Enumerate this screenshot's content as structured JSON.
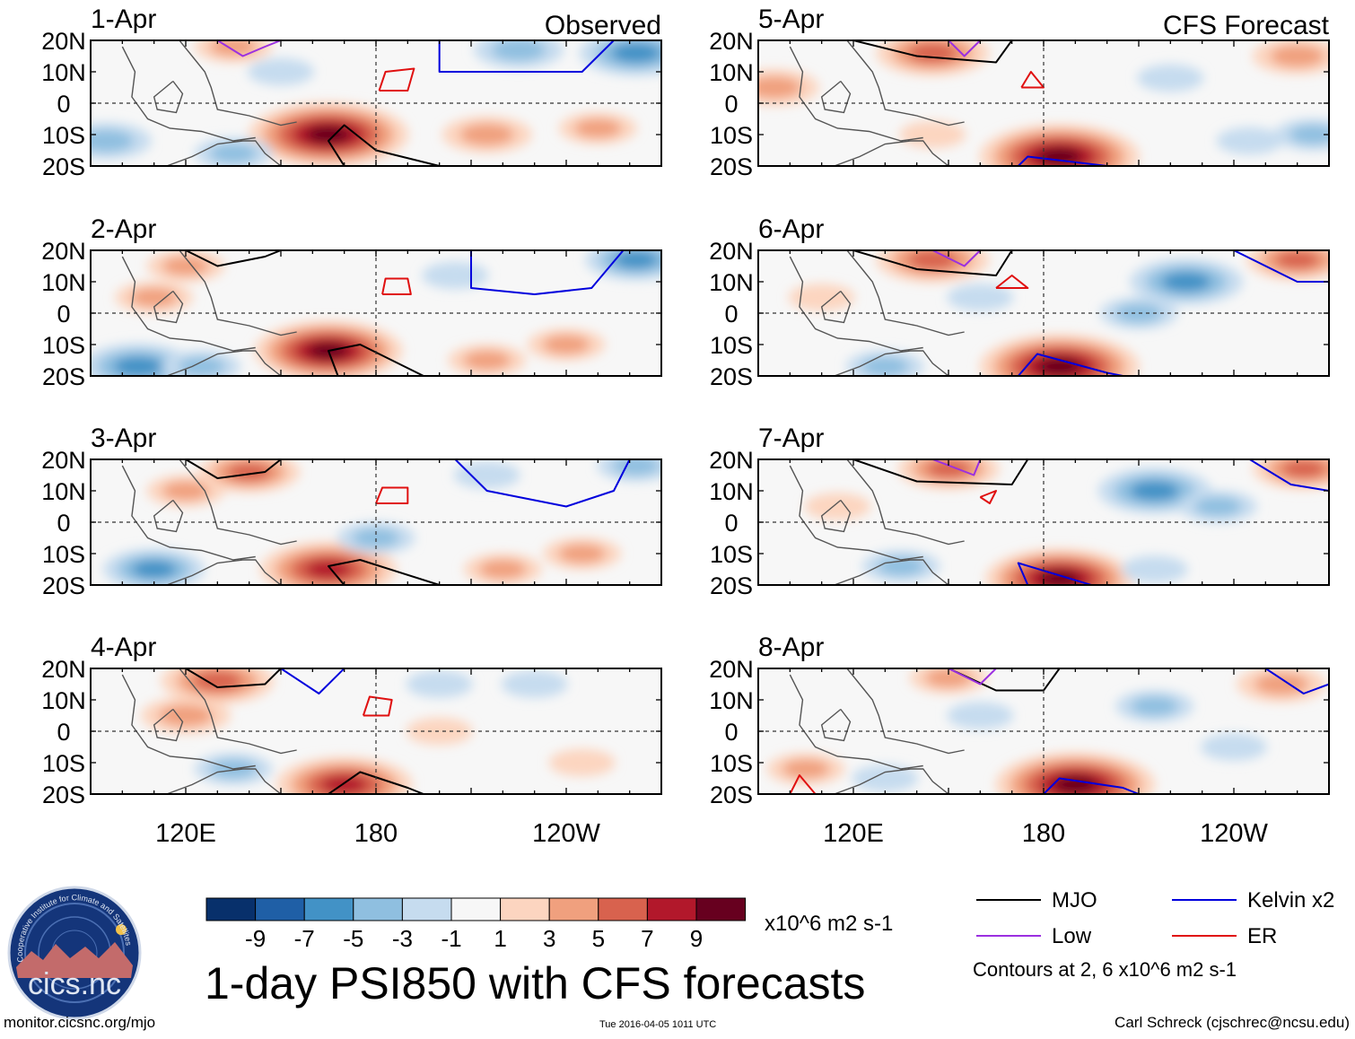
{
  "chart_data": {
    "type": "heatmap",
    "title": "1-day PSI850 with CFS forecasts",
    "variable": "PSI850 anomaly",
    "units": "x10^6 m2 s-1",
    "x_ticks": [
      "120E",
      "180",
      "120W"
    ],
    "y_ticks": [
      "20N",
      "10N",
      "0",
      "10S",
      "20S"
    ],
    "x_range_deg_east": [
      90,
      270
    ],
    "y_range_deg": [
      -20,
      20
    ],
    "left_column_header": "Observed",
    "right_column_header": "CFS Forecast",
    "panels": [
      {
        "date": "1-Apr",
        "column": "observed",
        "anomalies": [
          {
            "lon": 165,
            "lat": -10,
            "value": 10
          },
          {
            "lon": 135,
            "lat": 18,
            "value": 3
          },
          {
            "lon": 215,
            "lat": -10,
            "value": 4
          },
          {
            "lon": 250,
            "lat": -8,
            "value": 3
          },
          {
            "lon": 95,
            "lat": -12,
            "value": -4
          },
          {
            "lon": 225,
            "lat": 17,
            "value": -4
          },
          {
            "lon": 262,
            "lat": 16,
            "value": -6
          },
          {
            "lon": 150,
            "lat": 10,
            "value": -2
          },
          {
            "lon": 135,
            "lat": -16,
            "value": -3
          }
        ],
        "mjo": [
          [
            170,
            -20
          ],
          [
            165,
            -12
          ],
          [
            170,
            -7
          ],
          [
            180,
            -15
          ],
          [
            200,
            -20
          ]
        ],
        "kelvin": [
          [
            200,
            20
          ],
          [
            200,
            10
          ],
          [
            245,
            10
          ],
          [
            255,
            20
          ]
        ],
        "er": [
          [
            181,
            4
          ],
          [
            183,
            10
          ],
          [
            192,
            11
          ],
          [
            190,
            4
          ],
          [
            181,
            4
          ]
        ],
        "low": [
          [
            130,
            20
          ],
          [
            138,
            15
          ],
          [
            145,
            18
          ],
          [
            150,
            20
          ]
        ]
      },
      {
        "date": "2-Apr",
        "column": "observed",
        "anomalies": [
          {
            "lon": 165,
            "lat": -12,
            "value": 9
          },
          {
            "lon": 120,
            "lat": 15,
            "value": 3
          },
          {
            "lon": 110,
            "lat": 5,
            "value": 3
          },
          {
            "lon": 240,
            "lat": -10,
            "value": 3
          },
          {
            "lon": 215,
            "lat": -15,
            "value": 3
          },
          {
            "lon": 105,
            "lat": -17,
            "value": -6
          },
          {
            "lon": 125,
            "lat": -17,
            "value": -3
          },
          {
            "lon": 205,
            "lat": 12,
            "value": -2
          },
          {
            "lon": 262,
            "lat": 17,
            "value": -5
          }
        ],
        "mjo": [
          [
            120,
            20
          ],
          [
            130,
            15
          ],
          [
            145,
            18
          ],
          [
            150,
            20
          ]
        ],
        "mjo2": [
          [
            168,
            -20
          ],
          [
            165,
            -12
          ],
          [
            175,
            -10
          ],
          [
            195,
            -20
          ]
        ],
        "kelvin": [
          [
            210,
            20
          ],
          [
            210,
            8
          ],
          [
            230,
            6
          ],
          [
            248,
            8
          ],
          [
            258,
            20
          ]
        ],
        "er": [
          [
            182,
            6
          ],
          [
            183,
            11
          ],
          [
            190,
            11
          ],
          [
            191,
            6
          ],
          [
            182,
            6
          ]
        ]
      },
      {
        "date": "3-Apr",
        "column": "observed",
        "anomalies": [
          {
            "lon": 165,
            "lat": -15,
            "value": 8
          },
          {
            "lon": 140,
            "lat": 16,
            "value": 5
          },
          {
            "lon": 120,
            "lat": 10,
            "value": 3
          },
          {
            "lon": 245,
            "lat": -10,
            "value": 3
          },
          {
            "lon": 220,
            "lat": -15,
            "value": 3
          },
          {
            "lon": 110,
            "lat": -15,
            "value": -5
          },
          {
            "lon": 180,
            "lat": -5,
            "value": -3
          },
          {
            "lon": 215,
            "lat": 15,
            "value": -2
          },
          {
            "lon": 262,
            "lat": 18,
            "value": -3
          }
        ],
        "mjo": [
          [
            120,
            20
          ],
          [
            130,
            14
          ],
          [
            145,
            16
          ],
          [
            150,
            20
          ]
        ],
        "mjo2": [
          [
            170,
            -20
          ],
          [
            165,
            -14
          ],
          [
            175,
            -12
          ],
          [
            200,
            -20
          ]
        ],
        "kelvin": [
          [
            205,
            20
          ],
          [
            215,
            10
          ],
          [
            240,
            5
          ],
          [
            255,
            10
          ],
          [
            260,
            20
          ]
        ],
        "er": [
          [
            180,
            6
          ],
          [
            182,
            11
          ],
          [
            190,
            11
          ],
          [
            190,
            6
          ],
          [
            180,
            6
          ]
        ]
      },
      {
        "date": "4-Apr",
        "column": "observed",
        "anomalies": [
          {
            "lon": 170,
            "lat": -17,
            "value": 8
          },
          {
            "lon": 130,
            "lat": 16,
            "value": 6
          },
          {
            "lon": 120,
            "lat": 5,
            "value": 4
          },
          {
            "lon": 200,
            "lat": 0,
            "value": 2
          },
          {
            "lon": 245,
            "lat": -10,
            "value": 2
          },
          {
            "lon": 135,
            "lat": -12,
            "value": -3
          },
          {
            "lon": 200,
            "lat": 15,
            "value": -2
          },
          {
            "lon": 230,
            "lat": 15,
            "value": -2
          }
        ],
        "mjo": [
          [
            120,
            20
          ],
          [
            130,
            14
          ],
          [
            145,
            15
          ],
          [
            150,
            20
          ]
        ],
        "mjo2": [
          [
            165,
            -20
          ],
          [
            175,
            -13
          ],
          [
            190,
            -18
          ],
          [
            195,
            -20
          ]
        ],
        "kelvin": [
          [
            150,
            20
          ],
          [
            162,
            12
          ],
          [
            170,
            20
          ]
        ],
        "er": [
          [
            176,
            5
          ],
          [
            178,
            11
          ],
          [
            185,
            10
          ],
          [
            184,
            5
          ],
          [
            176,
            5
          ]
        ]
      },
      {
        "date": "5-Apr",
        "column": "forecast",
        "anomalies": [
          {
            "lon": 185,
            "lat": -17,
            "value": 10
          },
          {
            "lon": 145,
            "lat": 16,
            "value": 6
          },
          {
            "lon": 95,
            "lat": 5,
            "value": 4
          },
          {
            "lon": 260,
            "lat": 15,
            "value": 4
          },
          {
            "lon": 145,
            "lat": -10,
            "value": 2
          },
          {
            "lon": 220,
            "lat": 8,
            "value": -2
          },
          {
            "lon": 245,
            "lat": -12,
            "value": -2
          },
          {
            "lon": 265,
            "lat": -10,
            "value": -3
          }
        ],
        "mjo": [
          [
            120,
            20
          ],
          [
            140,
            15
          ],
          [
            165,
            13
          ],
          [
            170,
            20
          ]
        ],
        "kelvin": [
          [
            172,
            -20
          ],
          [
            175,
            -17
          ],
          [
            200,
            -20
          ]
        ],
        "er": [
          [
            173,
            5
          ],
          [
            176,
            10
          ],
          [
            180,
            5
          ],
          [
            173,
            5
          ]
        ],
        "low": [
          [
            150,
            20
          ],
          [
            155,
            15
          ],
          [
            160,
            20
          ]
        ]
      },
      {
        "date": "6-Apr",
        "column": "forecast",
        "anomalies": [
          {
            "lon": 185,
            "lat": -17,
            "value": 10
          },
          {
            "lon": 145,
            "lat": 17,
            "value": 6
          },
          {
            "lon": 260,
            "lat": 17,
            "value": 5
          },
          {
            "lon": 110,
            "lat": 5,
            "value": 2
          },
          {
            "lon": 225,
            "lat": 10,
            "value": -6
          },
          {
            "lon": 210,
            "lat": 0,
            "value": -3
          },
          {
            "lon": 130,
            "lat": -17,
            "value": -3
          },
          {
            "lon": 160,
            "lat": 5,
            "value": -2
          }
        ],
        "mjo": [
          [
            120,
            20
          ],
          [
            140,
            14
          ],
          [
            165,
            12
          ],
          [
            170,
            20
          ]
        ],
        "kelvin": [
          [
            172,
            -20
          ],
          [
            178,
            -13
          ],
          [
            200,
            -19
          ],
          [
            205,
            -20
          ]
        ],
        "kelvin2": [
          [
            240,
            20
          ],
          [
            260,
            10
          ],
          [
            270,
            10
          ]
        ],
        "er": [
          [
            165,
            8
          ],
          [
            170,
            12
          ],
          [
            175,
            8
          ],
          [
            165,
            8
          ]
        ],
        "low": [
          [
            145,
            20
          ],
          [
            155,
            15
          ],
          [
            160,
            20
          ]
        ]
      },
      {
        "date": "7-Apr",
        "column": "forecast",
        "anomalies": [
          {
            "lon": 185,
            "lat": -18,
            "value": 9
          },
          {
            "lon": 150,
            "lat": 17,
            "value": 5
          },
          {
            "lon": 262,
            "lat": 17,
            "value": 5
          },
          {
            "lon": 215,
            "lat": 10,
            "value": -6
          },
          {
            "lon": 235,
            "lat": 5,
            "value": -3
          },
          {
            "lon": 135,
            "lat": -14,
            "value": -3
          },
          {
            "lon": 215,
            "lat": -15,
            "value": -2
          },
          {
            "lon": 115,
            "lat": 5,
            "value": 2
          }
        ],
        "mjo": [
          [
            120,
            20
          ],
          [
            140,
            13
          ],
          [
            170,
            12
          ],
          [
            175,
            20
          ]
        ],
        "kelvin": [
          [
            175,
            -20
          ],
          [
            172,
            -13
          ],
          [
            195,
            -20
          ]
        ],
        "kelvin2": [
          [
            245,
            20
          ],
          [
            258,
            12
          ],
          [
            270,
            10
          ]
        ],
        "er": [
          [
            160,
            8
          ],
          [
            165,
            10
          ],
          [
            163,
            6
          ],
          [
            160,
            8
          ]
        ],
        "low": [
          [
            145,
            20
          ],
          [
            158,
            15
          ],
          [
            160,
            20
          ]
        ]
      },
      {
        "date": "8-Apr",
        "column": "forecast",
        "anomalies": [
          {
            "lon": 190,
            "lat": -17,
            "value": 10
          },
          {
            "lon": 150,
            "lat": 17,
            "value": 3
          },
          {
            "lon": 255,
            "lat": 15,
            "value": 4
          },
          {
            "lon": 105,
            "lat": -12,
            "value": 3
          },
          {
            "lon": 215,
            "lat": 8,
            "value": -3
          },
          {
            "lon": 240,
            "lat": -5,
            "value": -2
          },
          {
            "lon": 130,
            "lat": -15,
            "value": -2
          },
          {
            "lon": 160,
            "lat": 5,
            "value": -2
          }
        ],
        "mjo": [
          [
            150,
            20
          ],
          [
            165,
            13
          ],
          [
            180,
            13
          ],
          [
            185,
            20
          ]
        ],
        "kelvin": [
          [
            180,
            -20
          ],
          [
            185,
            -15
          ],
          [
            205,
            -18
          ],
          [
            210,
            -20
          ]
        ],
        "kelvin2": [
          [
            250,
            20
          ],
          [
            262,
            12
          ],
          [
            270,
            15
          ]
        ],
        "er": [
          [
            100,
            -20
          ],
          [
            103,
            -14
          ],
          [
            108,
            -20
          ]
        ],
        "low": [
          [
            150,
            20
          ],
          [
            160,
            15
          ],
          [
            165,
            20
          ]
        ]
      }
    ],
    "colorbar": {
      "colors": [
        "#08306b",
        "#1f5fa6",
        "#4292c6",
        "#8fbfe0",
        "#c6dcef",
        "#f7f7f7",
        "#fcd5c0",
        "#f0a07e",
        "#d8624e",
        "#b2182b",
        "#67001f"
      ],
      "labels": [
        "-9",
        "-7",
        "-5",
        "-3",
        "-1",
        "1",
        "3",
        "5",
        "7",
        "9"
      ],
      "units": "x10^6 m2 s-1"
    },
    "legend": [
      {
        "label": "MJO",
        "color": "#000000"
      },
      {
        "label": "Kelvin x2",
        "color": "#0000dd"
      },
      {
        "label": "Low",
        "color": "#9b30e0"
      },
      {
        "label": "ER",
        "color": "#e01010"
      }
    ],
    "contour_note": "Contours at 2, 6 x10^6 m2 s-1"
  },
  "footer": {
    "left": "monitor.cicsnc.org/mjo",
    "center": "Tue 2016-04-05 1011 UTC",
    "right": "Carl Schreck (cjschrec@ncsu.edu)"
  },
  "logo": {
    "text": "cics.nc",
    "ring_text": "Cooperative Institute for Climate and Satellites"
  }
}
